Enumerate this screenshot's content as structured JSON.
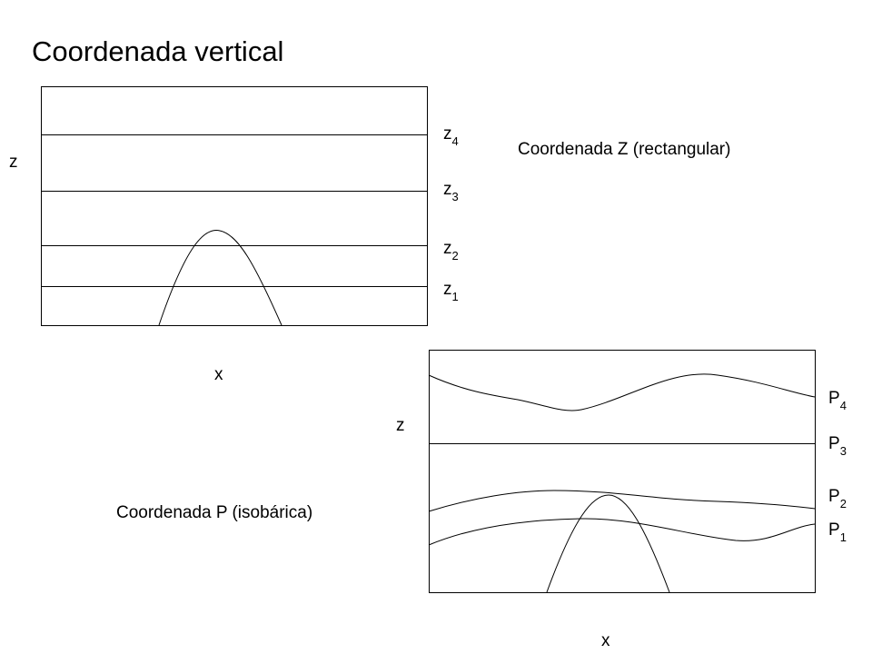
{
  "title": "Coordenada vertical",
  "z_panel": {
    "caption": "Coordenada Z (rectangular)",
    "axis_vertical": "z",
    "axis_horizontal": "x",
    "levels": [
      {
        "letter": "z",
        "index": "4"
      },
      {
        "letter": "z",
        "index": "3"
      },
      {
        "letter": "z",
        "index": "2"
      },
      {
        "letter": "z",
        "index": "1"
      }
    ]
  },
  "p_panel": {
    "caption": "Coordenada P (isobárica)",
    "axis_vertical": "z",
    "axis_horizontal": "x",
    "levels": [
      {
        "letter": "P",
        "index": "4"
      },
      {
        "letter": "P",
        "index": "3"
      },
      {
        "letter": "P",
        "index": "2"
      },
      {
        "letter": "P",
        "index": "1"
      }
    ]
  }
}
